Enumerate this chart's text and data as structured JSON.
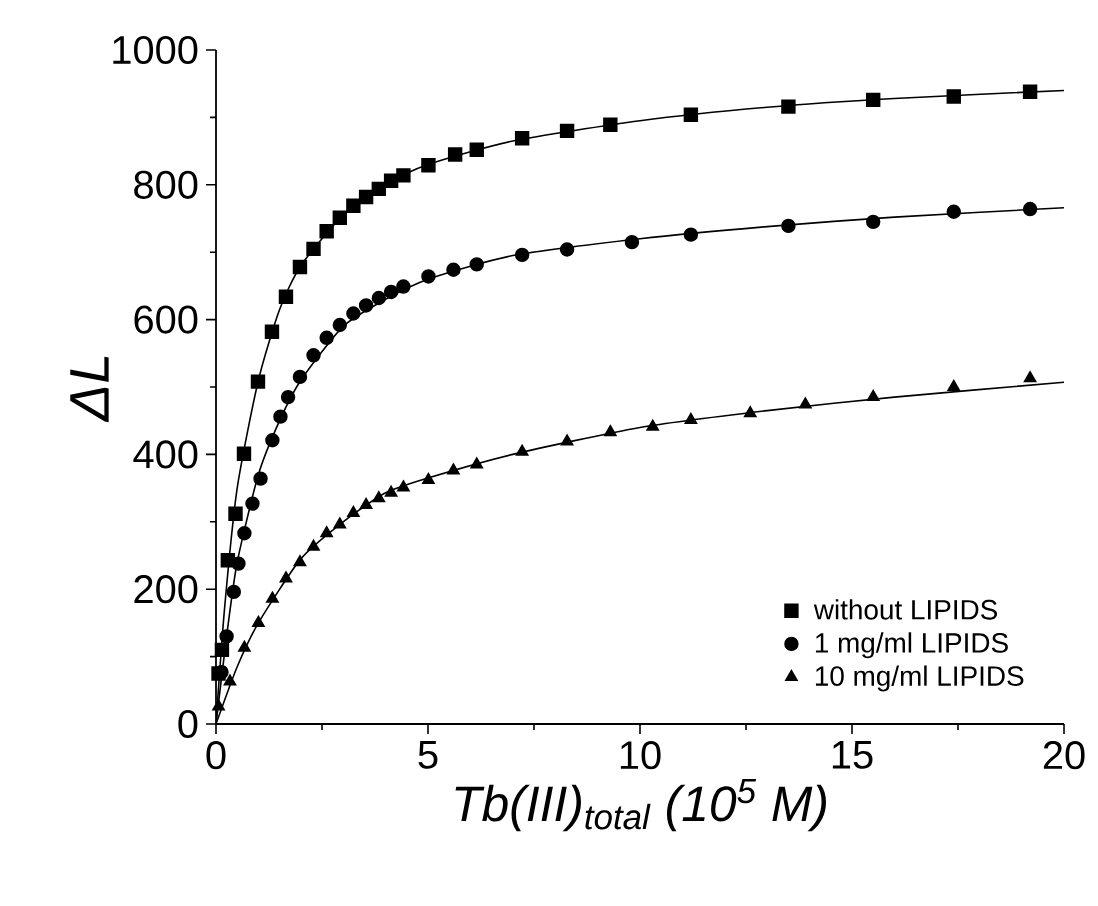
{
  "chart_data": {
    "type": "scatter",
    "xlabel": "Tb(III)$_{total}$ (10$^{5}$ M)",
    "ylabel": "ΔL",
    "xlim": [
      0,
      20
    ],
    "xticks": [
      0,
      5,
      10,
      15,
      20
    ],
    "ylim": [
      0,
      1000
    ],
    "yticks": [
      0,
      200,
      400,
      600,
      800,
      1000
    ],
    "legend": "bottom right",
    "series": [
      {
        "name": "without LIPIDS",
        "marker": "square",
        "color": "#000000",
        "x": [
          0.06,
          0.14,
          0.28,
          0.46,
          0.66,
          0.99,
          1.32,
          1.65,
          1.98,
          2.3,
          2.61,
          2.92,
          3.24,
          3.54,
          3.84,
          4.13,
          4.42,
          5.01,
          5.64,
          6.15,
          7.22,
          8.28,
          9.3,
          11.2,
          13.5,
          15.5,
          17.4,
          19.2
        ],
        "values": [
          75,
          110,
          243,
          312,
          401,
          508,
          582,
          634,
          678,
          705,
          731,
          751,
          769,
          782,
          794,
          806,
          814,
          829,
          845,
          852,
          869,
          880,
          889,
          904,
          916,
          926,
          931,
          938
        ]
      },
      {
        "name": "1 mg/ml LIPIDS",
        "marker": "circle",
        "color": "#000000",
        "x": [
          0.13,
          0.25,
          0.42,
          0.53,
          0.67,
          0.86,
          1.05,
          1.33,
          1.52,
          1.7,
          1.98,
          2.3,
          2.61,
          2.92,
          3.24,
          3.54,
          3.84,
          4.13,
          4.42,
          5.01,
          5.6,
          6.15,
          7.22,
          8.28,
          9.81,
          11.2,
          13.5,
          15.5,
          17.4,
          19.2
        ],
        "values": [
          77,
          130,
          196,
          238,
          283,
          327,
          364,
          421,
          456,
          485,
          515,
          547,
          573,
          592,
          609,
          621,
          632,
          641,
          649,
          664,
          674,
          682,
          696,
          704,
          715,
          726,
          739,
          745,
          760,
          764
        ]
      },
      {
        "name": "10 mg/ml LIPIDS",
        "marker": "triangle",
        "color": "#000000",
        "x": [
          0.06,
          0.33,
          0.67,
          1.0,
          1.33,
          1.65,
          1.98,
          2.3,
          2.61,
          2.92,
          3.24,
          3.54,
          3.84,
          4.13,
          4.42,
          5.01,
          5.6,
          6.15,
          7.22,
          8.28,
          9.3,
          10.3,
          11.2,
          12.6,
          13.9,
          15.5,
          17.4,
          19.2
        ],
        "values": [
          26,
          63,
          113,
          150,
          186,
          216,
          240,
          263,
          283,
          296,
          313,
          325,
          335,
          343,
          351,
          362,
          376,
          385,
          404,
          419,
          433,
          441,
          451,
          461,
          474,
          485,
          500,
          513
        ]
      },
      {
        "type": "line",
        "marker": "none",
        "color": "#000000",
        "x": [
          0,
          0.2,
          0.5,
          1,
          1.5,
          2,
          3,
          4,
          5,
          7,
          10,
          13,
          16,
          20
        ],
        "values": [
          0,
          170,
          350,
          510,
          615,
          680,
          755,
          800,
          830,
          865,
          895,
          915,
          928,
          940
        ]
      },
      {
        "type": "line",
        "marker": "none",
        "color": "#000000",
        "x": [
          0,
          0.25,
          0.5,
          1,
          1.5,
          2,
          3,
          4,
          5,
          7,
          10,
          13,
          16,
          20
        ],
        "values": [
          0,
          130,
          240,
          370,
          450,
          510,
          590,
          630,
          660,
          695,
          720,
          738,
          752,
          766
        ]
      },
      {
        "type": "line",
        "marker": "none",
        "color": "#000000",
        "x": [
          0,
          0.5,
          1,
          2,
          3,
          4,
          5,
          7,
          10,
          13,
          16,
          20
        ],
        "values": [
          0,
          85,
          150,
          245,
          300,
          343,
          365,
          400,
          440,
          465,
          485,
          507
        ]
      }
    ]
  }
}
